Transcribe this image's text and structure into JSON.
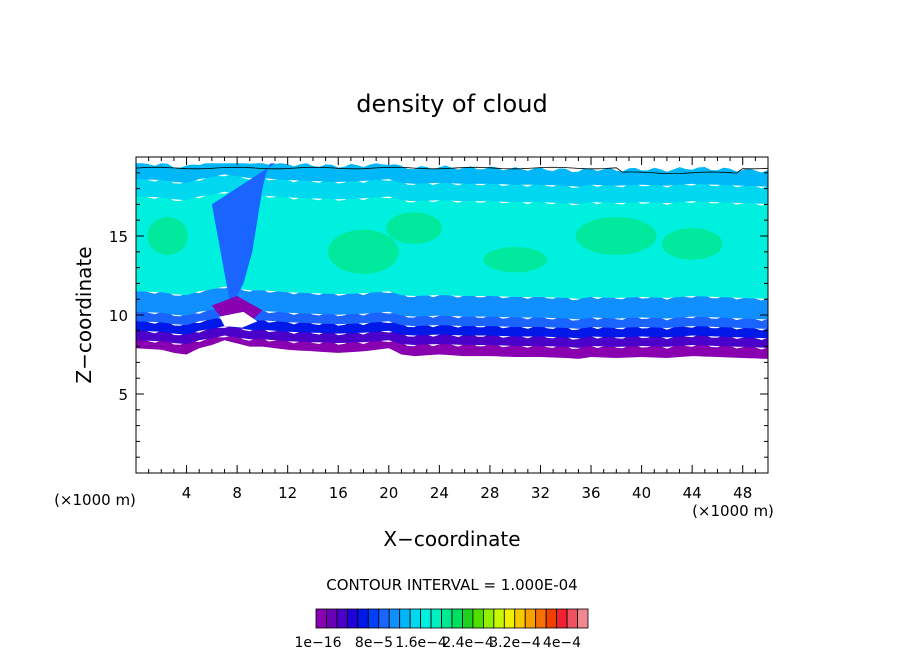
{
  "chart_data": {
    "type": "heatmap",
    "title": "density of cloud",
    "xlabel": "X−coordinate",
    "ylabel": "Z−coordinate",
    "x_unit": "(×1000 m)",
    "z_unit": "(×1000 m)",
    "xlim": [
      0,
      50
    ],
    "ylim": [
      0,
      20
    ],
    "x_ticks": [
      4,
      8,
      12,
      16,
      20,
      24,
      28,
      32,
      36,
      40,
      44,
      48
    ],
    "x_tick_labels": [
      "4",
      "8",
      "12",
      "16",
      "20",
      "24",
      "28",
      "32",
      "36",
      "40",
      "44",
      "48"
    ],
    "y_ticks": [
      5,
      10,
      15
    ],
    "y_tick_labels": [
      "5",
      "10",
      "15"
    ],
    "contour_interval": "CONTOUR INTERVAL = 1.000E-04",
    "colorbar": {
      "colors": [
        "#8800b0",
        "#6a00b8",
        "#4a00c8",
        "#2000d8",
        "#0018e8",
        "#0040f8",
        "#1a64ff",
        "#1090ff",
        "#00b8f8",
        "#00d8f0",
        "#00f0e0",
        "#00f0c0",
        "#00e890",
        "#00e060",
        "#20d020",
        "#50e000",
        "#90f000",
        "#c8f800",
        "#f0f000",
        "#f8c800",
        "#f8a000",
        "#f87000",
        "#f04000",
        "#f02030",
        "#f05060",
        "#f08890"
      ],
      "labels": [
        "1e−16",
        "8e−5",
        "1.6e−4",
        "2.4e−4",
        "3.2e−4",
        "4e−4"
      ]
    },
    "cloud_base_profile": {
      "x": [
        0,
        2,
        3,
        4,
        5,
        6,
        7,
        8,
        9,
        10,
        12,
        14,
        16,
        18,
        20,
        21,
        22,
        24,
        26,
        28,
        30,
        32,
        34,
        35,
        36,
        38,
        40,
        42,
        44,
        46,
        48,
        50
      ],
      "z": [
        7.9,
        7.8,
        7.6,
        7.5,
        7.9,
        8.1,
        8.4,
        8.2,
        8.0,
        8.0,
        7.8,
        7.7,
        7.6,
        7.7,
        7.9,
        7.5,
        7.4,
        7.5,
        7.4,
        7.4,
        7.3,
        7.3,
        7.2,
        7.1,
        7.3,
        7.2,
        7.3,
        7.2,
        7.4,
        7.3,
        7.2,
        7.1
      ]
    },
    "cloud_top_z": 19.6,
    "dry_slot": {
      "x": [
        7.5,
        8.5,
        9.2,
        9.6,
        10.0,
        10.3,
        10.6,
        11.2,
        12.5,
        14.0,
        15.5
      ],
      "z": [
        10.5,
        12.0,
        14.0,
        16.0,
        18.0,
        19.0,
        19.6,
        19.6,
        19.6,
        19.6,
        19.6
      ]
    },
    "regions": [
      {
        "z_low": 7.7,
        "z_high": 8.4,
        "level": 0
      },
      {
        "z_low": 8.4,
        "z_high": 9.0,
        "level": 2
      },
      {
        "z_low": 9.0,
        "z_high": 9.6,
        "level": 4
      },
      {
        "z_low": 9.6,
        "z_high": 10.2,
        "level": 6
      },
      {
        "z_low": 10.2,
        "z_high": 11.5,
        "level": 7
      },
      {
        "z_low": 11.5,
        "z_high": 17.5,
        "level": 10
      },
      {
        "z_low": 17.5,
        "z_high": 18.6,
        "level": 9
      },
      {
        "z_low": 18.6,
        "z_high": 19.6,
        "level": 8
      }
    ]
  }
}
